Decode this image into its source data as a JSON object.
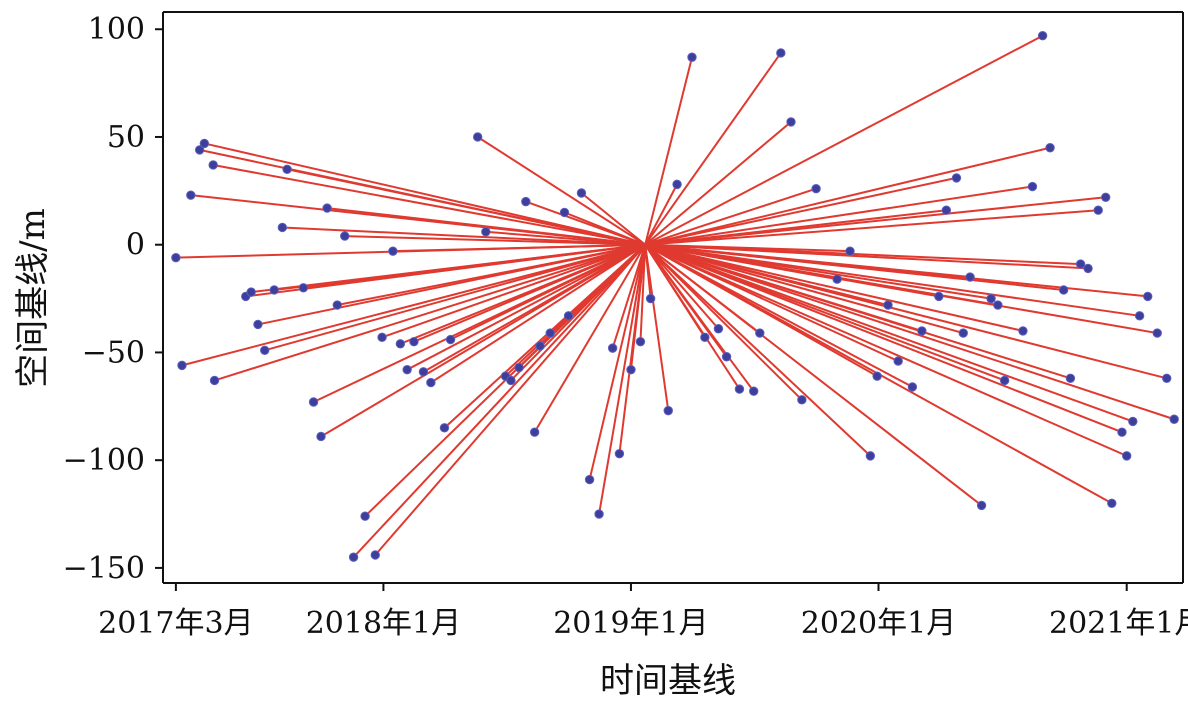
{
  "chart_data": {
    "type": "scatter",
    "xlabel": "时间基线",
    "ylabel": "空间基线/m",
    "x_ticks": [
      {
        "value": "2017-03-01",
        "label": "2017年3月"
      },
      {
        "value": "2018-01-01",
        "label": "2018年1月"
      },
      {
        "value": "2019-01-01",
        "label": "2019年1月"
      },
      {
        "value": "2020-01-01",
        "label": "2020年1月"
      },
      {
        "value": "2021-01-01",
        "label": "2021年1月"
      }
    ],
    "y_ticks": [
      {
        "value": 100,
        "label": "100"
      },
      {
        "value": 50,
        "label": "50"
      },
      {
        "value": 0,
        "label": "0"
      },
      {
        "value": -50,
        "label": "−50"
      },
      {
        "value": -100,
        "label": "−100"
      },
      {
        "value": -150,
        "label": "−150"
      }
    ],
    "xlim": [
      "2017-02-10",
      "2021-03-25"
    ],
    "ylim": [
      -157,
      108
    ],
    "grid": false,
    "reference": {
      "x": "2019-01-22",
      "y": 0
    },
    "points": [
      {
        "x": "2017-03-01",
        "y": -6
      },
      {
        "x": "2017-03-10",
        "y": -56
      },
      {
        "x": "2017-03-23",
        "y": 23
      },
      {
        "x": "2017-04-05",
        "y": 44
      },
      {
        "x": "2017-04-12",
        "y": 47
      },
      {
        "x": "2017-04-25",
        "y": 37
      },
      {
        "x": "2017-04-27",
        "y": -63
      },
      {
        "x": "2017-06-12",
        "y": -24
      },
      {
        "x": "2017-06-20",
        "y": -22
      },
      {
        "x": "2017-06-30",
        "y": -37
      },
      {
        "x": "2017-07-10",
        "y": -49
      },
      {
        "x": "2017-07-24",
        "y": -21
      },
      {
        "x": "2017-08-05",
        "y": 8
      },
      {
        "x": "2017-08-12",
        "y": 35
      },
      {
        "x": "2017-09-05",
        "y": -20
      },
      {
        "x": "2017-09-20",
        "y": -73
      },
      {
        "x": "2017-10-01",
        "y": -89
      },
      {
        "x": "2017-10-10",
        "y": 17
      },
      {
        "x": "2017-10-25",
        "y": -28
      },
      {
        "x": "2017-11-05",
        "y": 4
      },
      {
        "x": "2017-11-18",
        "y": -145
      },
      {
        "x": "2017-12-05",
        "y": -126
      },
      {
        "x": "2017-12-20",
        "y": -144
      },
      {
        "x": "2017-12-30",
        "y": -43
      },
      {
        "x": "2018-01-15",
        "y": -3
      },
      {
        "x": "2018-01-26",
        "y": -46
      },
      {
        "x": "2018-02-05",
        "y": -58
      },
      {
        "x": "2018-02-15",
        "y": -45
      },
      {
        "x": "2018-03-01",
        "y": -59
      },
      {
        "x": "2018-03-12",
        "y": -64
      },
      {
        "x": "2018-04-01",
        "y": -85
      },
      {
        "x": "2018-04-10",
        "y": -44
      },
      {
        "x": "2018-05-20",
        "y": 50
      },
      {
        "x": "2018-06-01",
        "y": 6
      },
      {
        "x": "2018-06-30",
        "y": -61
      },
      {
        "x": "2018-07-08",
        "y": -63
      },
      {
        "x": "2018-07-20",
        "y": -57
      },
      {
        "x": "2018-07-30",
        "y": 20
      },
      {
        "x": "2018-08-12",
        "y": -87
      },
      {
        "x": "2018-08-20",
        "y": -47
      },
      {
        "x": "2018-09-04",
        "y": -41
      },
      {
        "x": "2018-09-25",
        "y": 15
      },
      {
        "x": "2018-10-01",
        "y": -33
      },
      {
        "x": "2018-10-20",
        "y": 24
      },
      {
        "x": "2018-11-01",
        "y": -109
      },
      {
        "x": "2018-11-15",
        "y": -125
      },
      {
        "x": "2018-12-05",
        "y": -48
      },
      {
        "x": "2018-12-15",
        "y": -97
      },
      {
        "x": "2019-01-01",
        "y": -58
      },
      {
        "x": "2019-01-15",
        "y": -45
      },
      {
        "x": "2019-01-30",
        "y": -25
      },
      {
        "x": "2019-02-25",
        "y": -77
      },
      {
        "x": "2019-03-10",
        "y": 28
      },
      {
        "x": "2019-04-01",
        "y": 87
      },
      {
        "x": "2019-04-20",
        "y": -43
      },
      {
        "x": "2019-05-10",
        "y": -39
      },
      {
        "x": "2019-05-22",
        "y": -52
      },
      {
        "x": "2019-06-10",
        "y": -67
      },
      {
        "x": "2019-07-01",
        "y": -68
      },
      {
        "x": "2019-07-10",
        "y": -41
      },
      {
        "x": "2019-08-10",
        "y": 89
      },
      {
        "x": "2019-08-25",
        "y": 57
      },
      {
        "x": "2019-09-10",
        "y": -72
      },
      {
        "x": "2019-10-01",
        "y": 26
      },
      {
        "x": "2019-11-01",
        "y": -16
      },
      {
        "x": "2019-11-20",
        "y": -3
      },
      {
        "x": "2019-12-20",
        "y": -98
      },
      {
        "x": "2019-12-30",
        "y": -61
      },
      {
        "x": "2020-01-15",
        "y": -28
      },
      {
        "x": "2020-01-30",
        "y": -54
      },
      {
        "x": "2020-02-20",
        "y": -66
      },
      {
        "x": "2020-03-05",
        "y": -40
      },
      {
        "x": "2020-03-30",
        "y": -24
      },
      {
        "x": "2020-04-10",
        "y": 16
      },
      {
        "x": "2020-04-25",
        "y": 31
      },
      {
        "x": "2020-05-05",
        "y": -41
      },
      {
        "x": "2020-05-15",
        "y": -15
      },
      {
        "x": "2020-06-01",
        "y": -121
      },
      {
        "x": "2020-06-15",
        "y": -25
      },
      {
        "x": "2020-06-25",
        "y": -28
      },
      {
        "x": "2020-07-05",
        "y": -63
      },
      {
        "x": "2020-08-01",
        "y": -40
      },
      {
        "x": "2020-08-15",
        "y": 27
      },
      {
        "x": "2020-08-30",
        "y": 97
      },
      {
        "x": "2020-09-10",
        "y": 45
      },
      {
        "x": "2020-09-30",
        "y": -21
      },
      {
        "x": "2020-10-10",
        "y": -62
      },
      {
        "x": "2020-10-25",
        "y": -9
      },
      {
        "x": "2020-11-05",
        "y": -11
      },
      {
        "x": "2020-11-20",
        "y": 16
      },
      {
        "x": "2020-12-01",
        "y": 22
      },
      {
        "x": "2020-12-10",
        "y": -120
      },
      {
        "x": "2020-12-25",
        "y": -87
      },
      {
        "x": "2021-01-01",
        "y": -98
      },
      {
        "x": "2021-01-10",
        "y": -82
      },
      {
        "x": "2021-01-20",
        "y": -33
      },
      {
        "x": "2021-02-01",
        "y": -24
      },
      {
        "x": "2021-02-15",
        "y": -41
      },
      {
        "x": "2021-03-01",
        "y": -62
      },
      {
        "x": "2021-03-12",
        "y": -81
      }
    ]
  },
  "colors": {
    "line": "#e03a30",
    "point": "#3d3f9b",
    "axis": "#111111",
    "text": "#111111"
  }
}
